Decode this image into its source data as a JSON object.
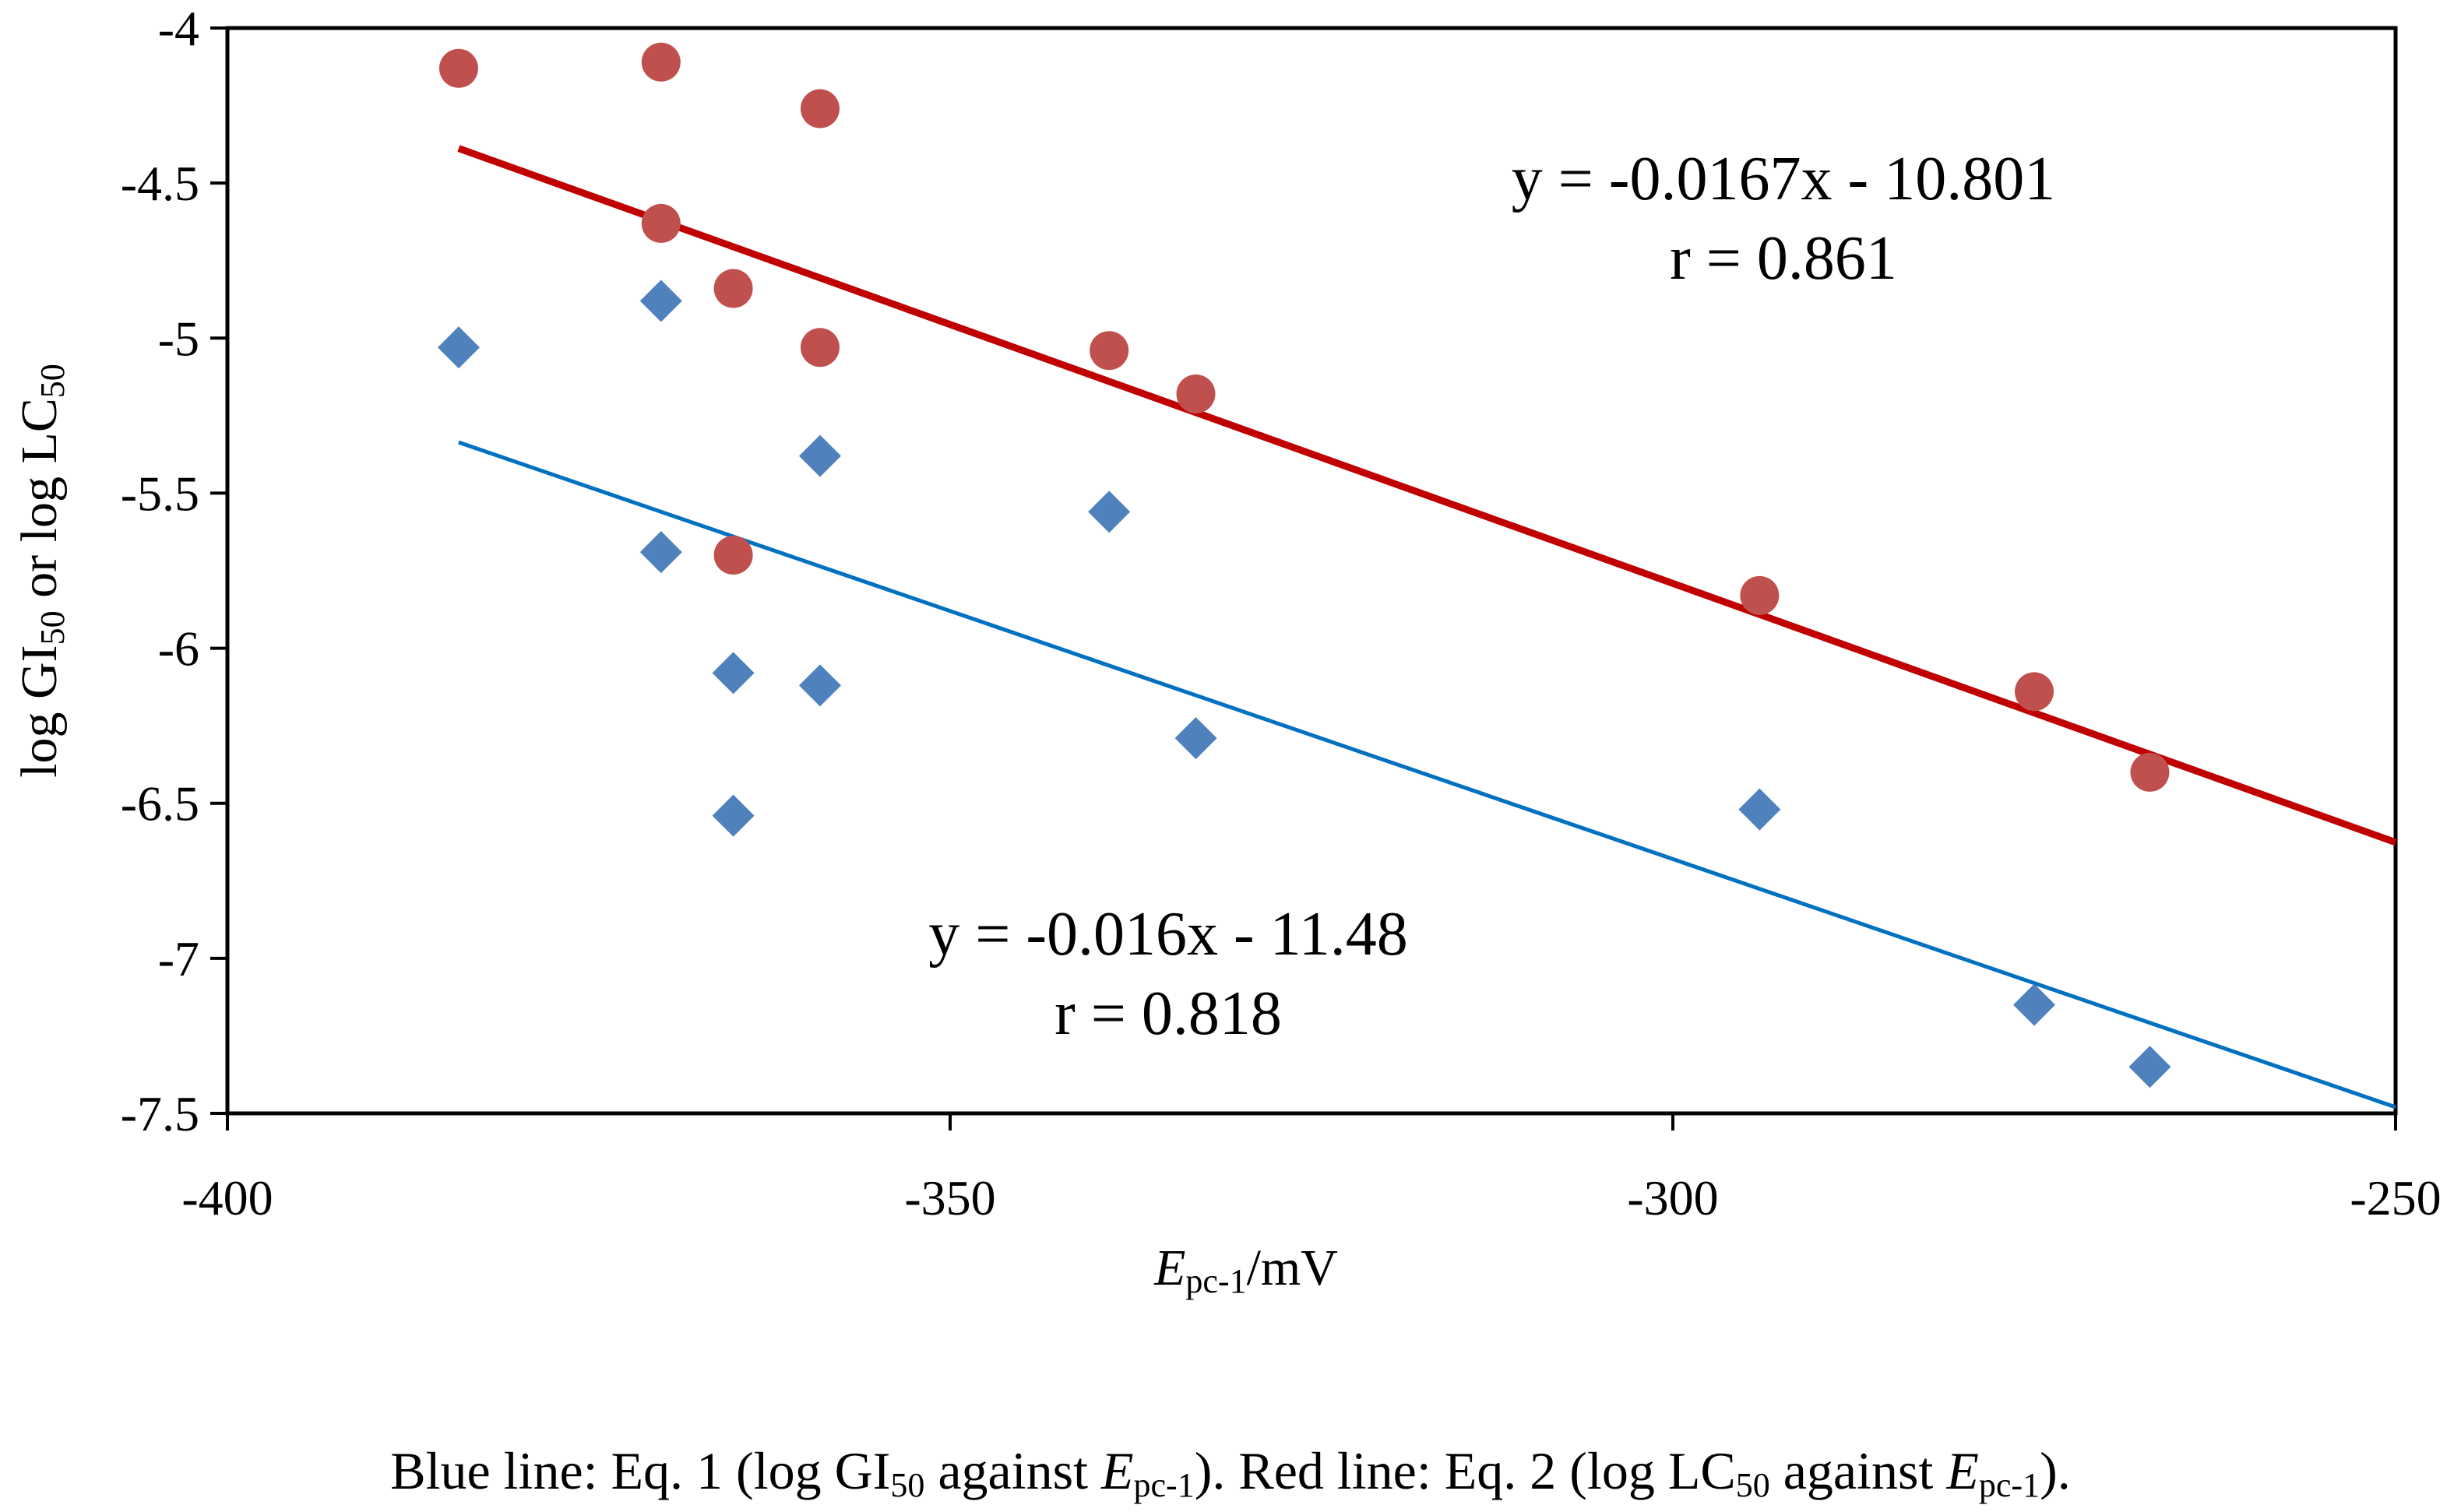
{
  "chart_data": {
    "type": "scatter",
    "xlabel": {
      "italic": "E",
      "sub": "pc-1",
      "suffix": "/mV"
    },
    "ylabel": {
      "part1": "log GI",
      "sub1": "50",
      "part2": " or log LC",
      "sub2": "50"
    },
    "xlim": [
      -400,
      -250
    ],
    "ylim": [
      -7.5,
      -4
    ],
    "xticks": [
      -400,
      -350,
      -300,
      -250
    ],
    "xtick_labels": [
      "-400",
      "-350",
      "-300",
      "-250"
    ],
    "yticks": [
      -4,
      -4.5,
      -5,
      -5.5,
      -6,
      -6.5,
      -7,
      -7.5
    ],
    "ytick_labels": [
      "-4",
      "-4.5",
      "-5",
      "-5.5",
      "-6",
      "-6.5",
      "-7",
      "-7.5"
    ],
    "grid": false,
    "series": [
      {
        "name": "log LC50",
        "marker": "circle",
        "color": "#C0504D",
        "points": [
          {
            "x": -384,
            "y": -4.13
          },
          {
            "x": -370,
            "y": -4.11
          },
          {
            "x": -370,
            "y": -4.63
          },
          {
            "x": -365,
            "y": -4.84
          },
          {
            "x": -365,
            "y": -5.7
          },
          {
            "x": -359,
            "y": -4.26
          },
          {
            "x": -359,
            "y": -5.03
          },
          {
            "x": -339,
            "y": -5.04
          },
          {
            "x": -333,
            "y": -5.18
          },
          {
            "x": -294,
            "y": -5.83
          },
          {
            "x": -275,
            "y": -6.14
          },
          {
            "x": -267,
            "y": -6.4
          }
        ],
        "trendline": {
          "slope": -0.0167,
          "intercept": -10.801,
          "x_range": [
            -384,
            -250
          ],
          "color": "#C00000"
        }
      },
      {
        "name": "log GI50",
        "marker": "diamond",
        "color": "#4F81BD",
        "points": [
          {
            "x": -384,
            "y": -5.03
          },
          {
            "x": -370,
            "y": -4.88
          },
          {
            "x": -370,
            "y": -5.69
          },
          {
            "x": -365,
            "y": -6.08
          },
          {
            "x": -365,
            "y": -6.54
          },
          {
            "x": -359,
            "y": -5.38
          },
          {
            "x": -359,
            "y": -6.12
          },
          {
            "x": -339,
            "y": -5.56
          },
          {
            "x": -333,
            "y": -6.29
          },
          {
            "x": -294,
            "y": -6.52
          },
          {
            "x": -275,
            "y": -7.15
          },
          {
            "x": -267,
            "y": -7.35
          }
        ],
        "trendline": {
          "slope": -0.016,
          "intercept": -11.48,
          "x_range": [
            -384,
            -250
          ],
          "color": "#0070C0"
        }
      }
    ],
    "annotations": {
      "red_equation": "y = -0.0167x - 10.801",
      "red_r": "r = 0.861",
      "blue_equation": "y = -0.016x - 11.48",
      "blue_r": "r = 0.818"
    }
  },
  "caption": {
    "p1": "Blue line: Eq. 1 (log GI",
    "s1": "50",
    "p2": " against ",
    "i1": "E",
    "s2": "pc-1",
    "p3": "). Red line: Eq. 2 (log LC",
    "s3": "50",
    "p4": " against ",
    "i2": "E",
    "s4": "pc-1",
    "p5": ")."
  }
}
